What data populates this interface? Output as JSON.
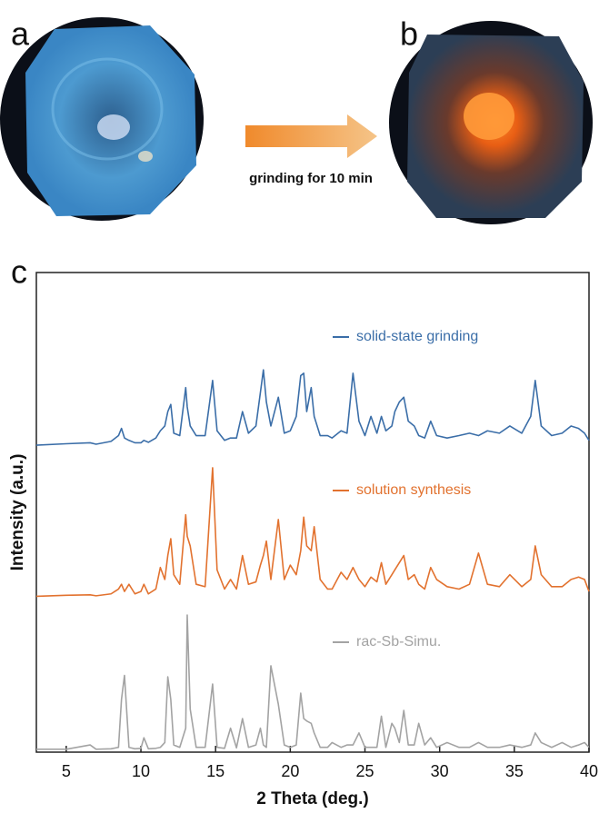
{
  "panel_labels": [
    "a",
    "b",
    "c"
  ],
  "arrow_label": "grinding for 10 min",
  "chart_data": {
    "type": "line",
    "xlabel": "2 Theta (deg.)",
    "ylabel": "Intensity (a.u.)",
    "xlim": [
      3,
      40
    ],
    "xticks": [
      5,
      10,
      15,
      20,
      25,
      30,
      35,
      40
    ],
    "ylim": [
      0,
      100
    ],
    "x": [
      3,
      5,
      6.6,
      7,
      8,
      8.5,
      8.7,
      8.9,
      9.2,
      9.6,
      10,
      10.2,
      10.5,
      11,
      11.3,
      11.6,
      11.8,
      12.0,
      12.2,
      12.6,
      13.0,
      13.1,
      13.3,
      13.7,
      14.3,
      14.8,
      15.1,
      15.6,
      16.0,
      16.4,
      16.8,
      17.2,
      17.7,
      18.0,
      18.2,
      18.4,
      18.7,
      19.2,
      19.6,
      20.0,
      20.4,
      20.7,
      20.9,
      21.1,
      21.4,
      21.6,
      22.0,
      22.5,
      22.8,
      23.4,
      23.8,
      24.2,
      24.6,
      25.0,
      25.4,
      25.8,
      26.1,
      26.4,
      26.8,
      27.0,
      27.3,
      27.6,
      27.9,
      28.3,
      28.6,
      29.0,
      29.4,
      29.8,
      30.5,
      31.3,
      32.0,
      32.6,
      33.2,
      34.0,
      34.7,
      35.5,
      36.1,
      36.4,
      36.8,
      37.5,
      38.2,
      38.8,
      39.3,
      39.7,
      40
    ],
    "series": [
      {
        "name": "solid-state grinding",
        "color": "#3b6ea8",
        "values": [
          64,
          64.3,
          64.5,
          64.2,
          64.8,
          66,
          67.5,
          65.5,
          65,
          64.5,
          64.5,
          65,
          64.6,
          65.5,
          67,
          68,
          71,
          72.5,
          66.5,
          66,
          76,
          72,
          68,
          66,
          66,
          77.5,
          67,
          65,
          65.5,
          65.5,
          71,
          66.5,
          68,
          75,
          79.7,
          73,
          68,
          74,
          66.5,
          67,
          70,
          78.5,
          79,
          71,
          76,
          70,
          66,
          66,
          65.5,
          67,
          66.5,
          79,
          69,
          66,
          70,
          66.5,
          70,
          67,
          68,
          71,
          73,
          74,
          69,
          68,
          66,
          65.5,
          69,
          66,
          65.5,
          66,
          66.5,
          66,
          67,
          66.5,
          68,
          66.5,
          70,
          77.5,
          68,
          66,
          66.5,
          68,
          67.5,
          66.5,
          65
        ]
      },
      {
        "name": "solution synthesis",
        "color": "#e2722f",
        "values": [
          32.5,
          32.7,
          32.8,
          32.6,
          33,
          34,
          35,
          33.5,
          35,
          33,
          33.5,
          35,
          33,
          34,
          38.5,
          36,
          41,
          44.5,
          37,
          35,
          49.5,
          45,
          43,
          35,
          34.5,
          59.3,
          38,
          34,
          36,
          34,
          41,
          35,
          35.5,
          39,
          41,
          44,
          36,
          48.5,
          36,
          39,
          37,
          42,
          49,
          43,
          42,
          47,
          36,
          34,
          34,
          37.5,
          36,
          38.5,
          36,
          34.5,
          36.5,
          35.5,
          39.5,
          35,
          37,
          38,
          39.5,
          41,
          36,
          37,
          35,
          34,
          38.5,
          36,
          34.5,
          34,
          35,
          41.5,
          35,
          34.5,
          37,
          34.5,
          36,
          43,
          37,
          34.5,
          34.5,
          36,
          36.5,
          36,
          33.5
        ]
      },
      {
        "name": "rac-Sb-Simu.",
        "color": "#a3a3a3",
        "values": [
          0.6,
          0.6,
          1.5,
          0.6,
          0.7,
          1,
          11,
          16,
          1,
          0.7,
          0.8,
          3,
          0.7,
          0.8,
          1,
          2,
          15.7,
          11,
          1.5,
          1,
          5,
          28.6,
          9,
          1,
          1,
          14.2,
          1,
          0.8,
          5,
          0.9,
          7,
          1,
          1.5,
          5,
          1.5,
          1,
          18,
          10,
          1.5,
          1,
          1.5,
          12.3,
          7,
          6.5,
          6,
          4,
          1,
          1,
          2,
          1,
          1.5,
          1.5,
          4,
          1,
          1,
          1,
          7.5,
          1,
          6,
          5,
          2,
          8.7,
          1.5,
          1.5,
          6,
          1.5,
          3,
          1,
          2,
          1,
          1,
          2,
          1,
          1,
          1.5,
          1,
          1.5,
          4,
          2,
          1,
          2,
          1,
          1.5,
          2,
          1
        ]
      }
    ]
  }
}
